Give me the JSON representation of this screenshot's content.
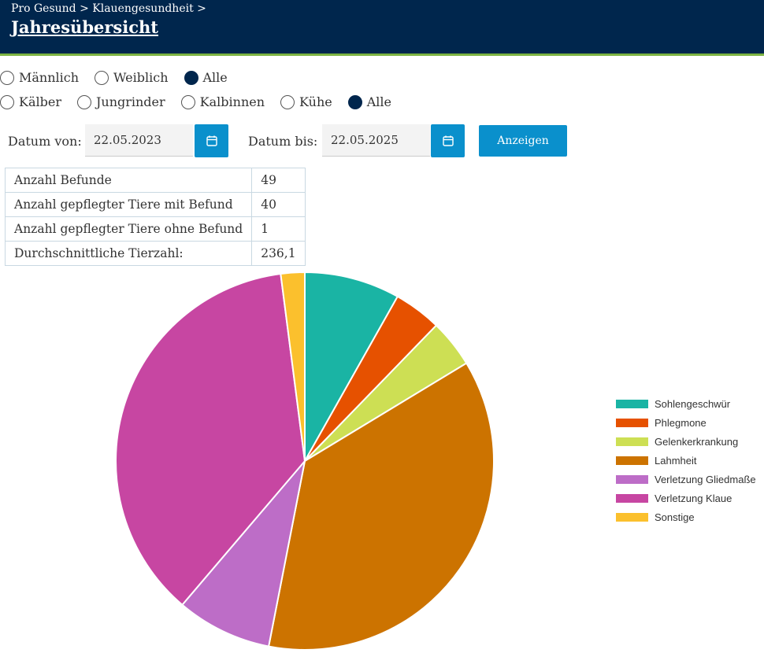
{
  "header": {
    "breadcrumb": "Pro Gesund > Klauengesundheit >",
    "title": "Jahresübersicht"
  },
  "filters": {
    "gender": {
      "options": [
        "Männlich",
        "Weiblich",
        "Alle"
      ],
      "selected": "Alle"
    },
    "group": {
      "options": [
        "Kälber",
        "Jungrinder",
        "Kalbinnen",
        "Kühe",
        "Alle"
      ],
      "selected": "Alle"
    }
  },
  "dates": {
    "from_label": "Datum von:",
    "from_value": "22.05.2023",
    "to_label": "Datum bis:",
    "to_value": "22.05.2025",
    "show_button": "Anzeigen"
  },
  "stats": [
    {
      "label": "Anzahl Befunde",
      "value": "49"
    },
    {
      "label": "Anzahl gepflegter Tiere mit Befund",
      "value": "40"
    },
    {
      "label": "Anzahl gepflegter Tiere ohne Befund",
      "value": "1"
    },
    {
      "label": "Durchschnittliche Tierzahl:",
      "value": "236,1"
    }
  ],
  "colors": {
    "header_bg": "#00264d",
    "accent_line": "#7cb342",
    "button": "#0a90cc"
  },
  "chart_data": {
    "type": "pie",
    "legend_position": "right",
    "series": [
      {
        "name": "Sohlengeschwür",
        "value": 4,
        "color": "#1ab4a4"
      },
      {
        "name": "Phlegmone",
        "value": 2,
        "color": "#e65100"
      },
      {
        "name": "Gelenkerkrankung",
        "value": 2,
        "color": "#cddf54"
      },
      {
        "name": "Lahmheit",
        "value": 18,
        "color": "#cc7300"
      },
      {
        "name": "Verletzung Gliedmaße",
        "value": 4,
        "color": "#bd6dc7"
      },
      {
        "name": "Verletzung Klaue",
        "value": 18,
        "color": "#c746a2"
      },
      {
        "name": "Sonstige",
        "value": 1,
        "color": "#fbc02d"
      }
    ]
  }
}
